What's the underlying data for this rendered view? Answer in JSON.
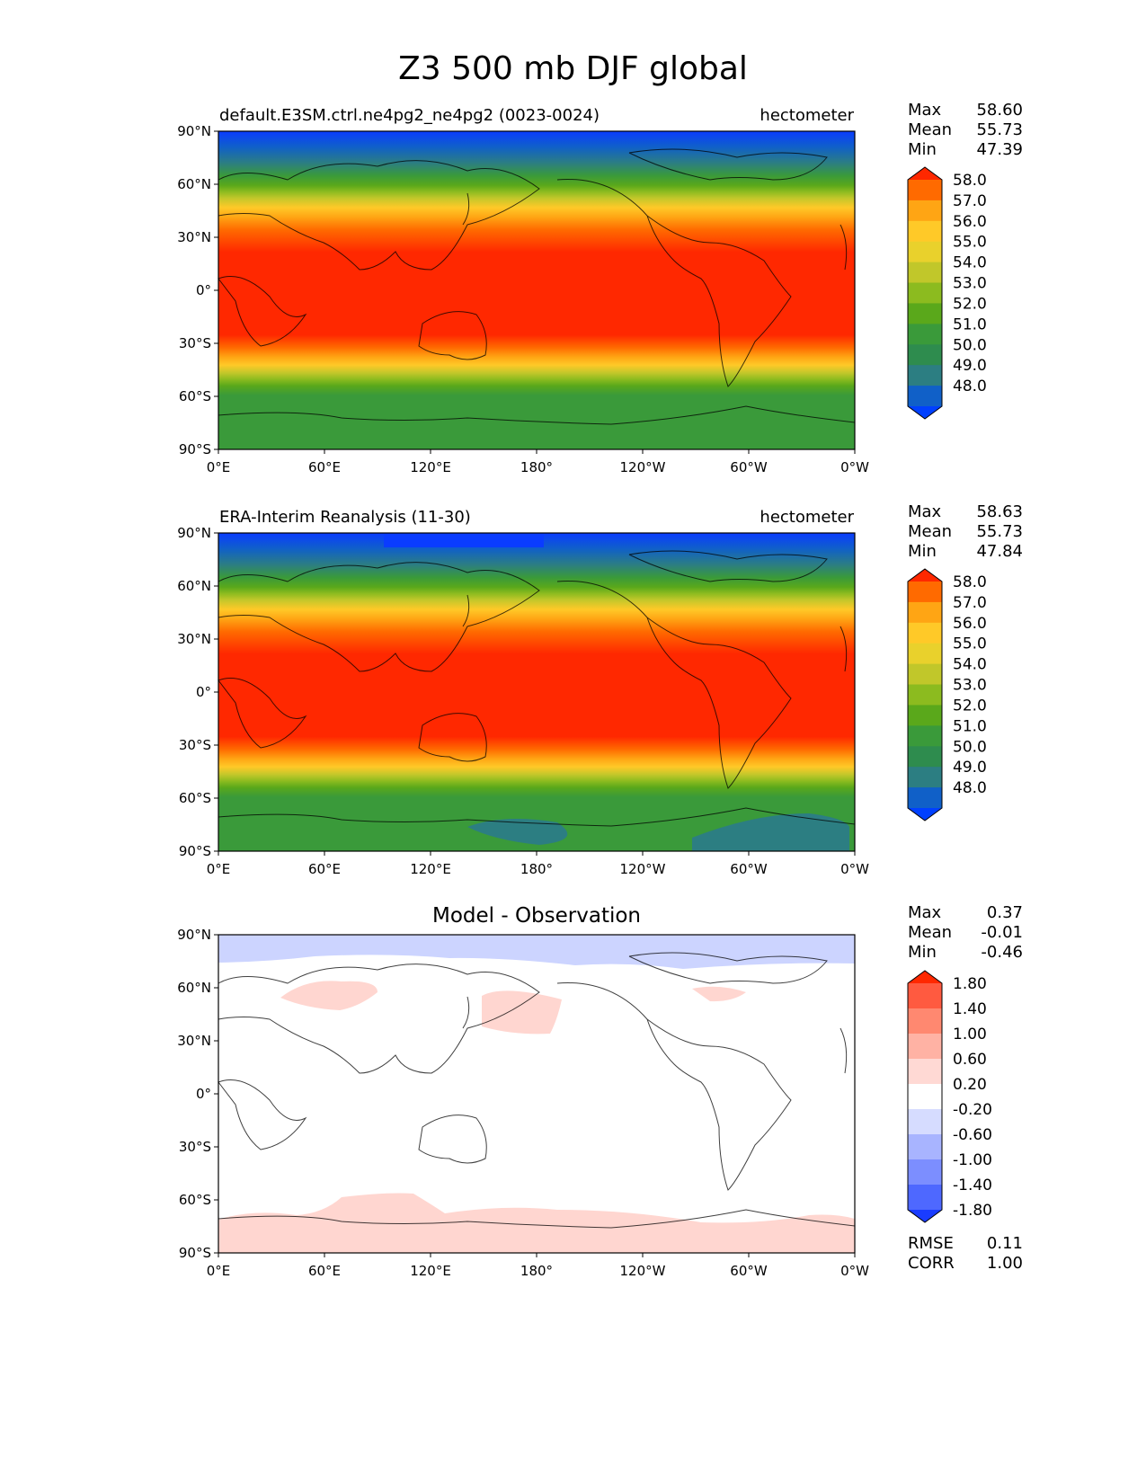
{
  "title": "Z3 500 mb DJF global",
  "panels": [
    {
      "id": "test",
      "title": "default.E3SM.ctrl.ne4pg2_ne4pg2 (0023-0024)",
      "units": "hectometer",
      "stats": {
        "max_label": "Max",
        "max": "58.60",
        "mean_label": "Mean",
        "mean": "55.73",
        "min_label": "Min",
        "min": "47.39"
      }
    },
    {
      "id": "ref",
      "title": "ERA-Interim Reanalysis (11-30)",
      "units": "hectometer",
      "stats": {
        "max_label": "Max",
        "max": "58.63",
        "mean_label": "Mean",
        "mean": "55.73",
        "min_label": "Min",
        "min": "47.84"
      }
    },
    {
      "id": "diff",
      "title": "Model - Observation",
      "units": "",
      "stats": {
        "max_label": "Max",
        "max": "0.37",
        "mean_label": "Mean",
        "mean": "-0.01",
        "min_label": "Min",
        "min": "-0.46"
      },
      "metrics": {
        "rmse_label": "RMSE",
        "rmse": "0.11",
        "corr_label": "CORR",
        "corr": "1.00"
      }
    }
  ],
  "axes": {
    "lat_ticks": [
      "90°N",
      "60°N",
      "30°N",
      "0°",
      "30°S",
      "60°S",
      "90°S"
    ],
    "lon_ticks": [
      "0°E",
      "60°E",
      "120°E",
      "180°",
      "120°W",
      "60°W",
      "0°W"
    ]
  },
  "colorbars": {
    "main": {
      "labels": [
        "58.0",
        "57.0",
        "56.0",
        "55.0",
        "54.0",
        "53.0",
        "52.0",
        "51.0",
        "50.0",
        "49.0",
        "48.0"
      ],
      "colors": [
        "#ff2800",
        "#ff6a00",
        "#ffa514",
        "#ffc928",
        "#e9d12c",
        "#c1c72a",
        "#8cbb1f",
        "#5aa81b",
        "#3a9a3a",
        "#2e8c4e",
        "#2c7e82",
        "#1060c8",
        "#0040ff"
      ]
    },
    "diff": {
      "labels": [
        "1.80",
        "1.40",
        "1.00",
        "0.60",
        "0.20",
        "-0.20",
        "-0.60",
        "-1.00",
        "-1.40",
        "-1.80"
      ],
      "colors": [
        "#ff2800",
        "#ff5a40",
        "#ff8870",
        "#ffb2a4",
        "#ffd9d4",
        "#ffffff",
        "#d6dcff",
        "#a8b4ff",
        "#7c8eff",
        "#4e68ff",
        "#1a3cff"
      ]
    }
  }
}
